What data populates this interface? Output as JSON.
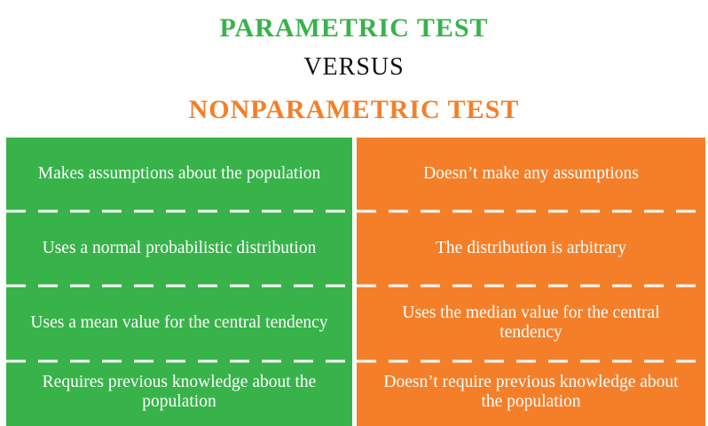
{
  "colors": {
    "parametric": "#37b34a",
    "nonparametric": "#f57f29",
    "versus_text": "#111111",
    "divider": "#ffffff"
  },
  "header": {
    "title_parametric": "PARAMETRIC TEST",
    "title_versus": "VERSUS",
    "title_nonparametric": "NONPARAMETRIC TEST"
  },
  "rows": [
    {
      "parametric": "Makes assumptions about the population",
      "nonparametric": "Doesn’t make any assumptions"
    },
    {
      "parametric": "Uses a normal probabilistic distribution",
      "nonparametric": "The distribution is arbitrary"
    },
    {
      "parametric": "Uses a mean value for the central tendency",
      "nonparametric": "Uses the median value for the central tendency"
    },
    {
      "parametric": "Requires previous knowledge about the population",
      "nonparametric": "Doesn’t require previous knowledge about the population"
    }
  ]
}
